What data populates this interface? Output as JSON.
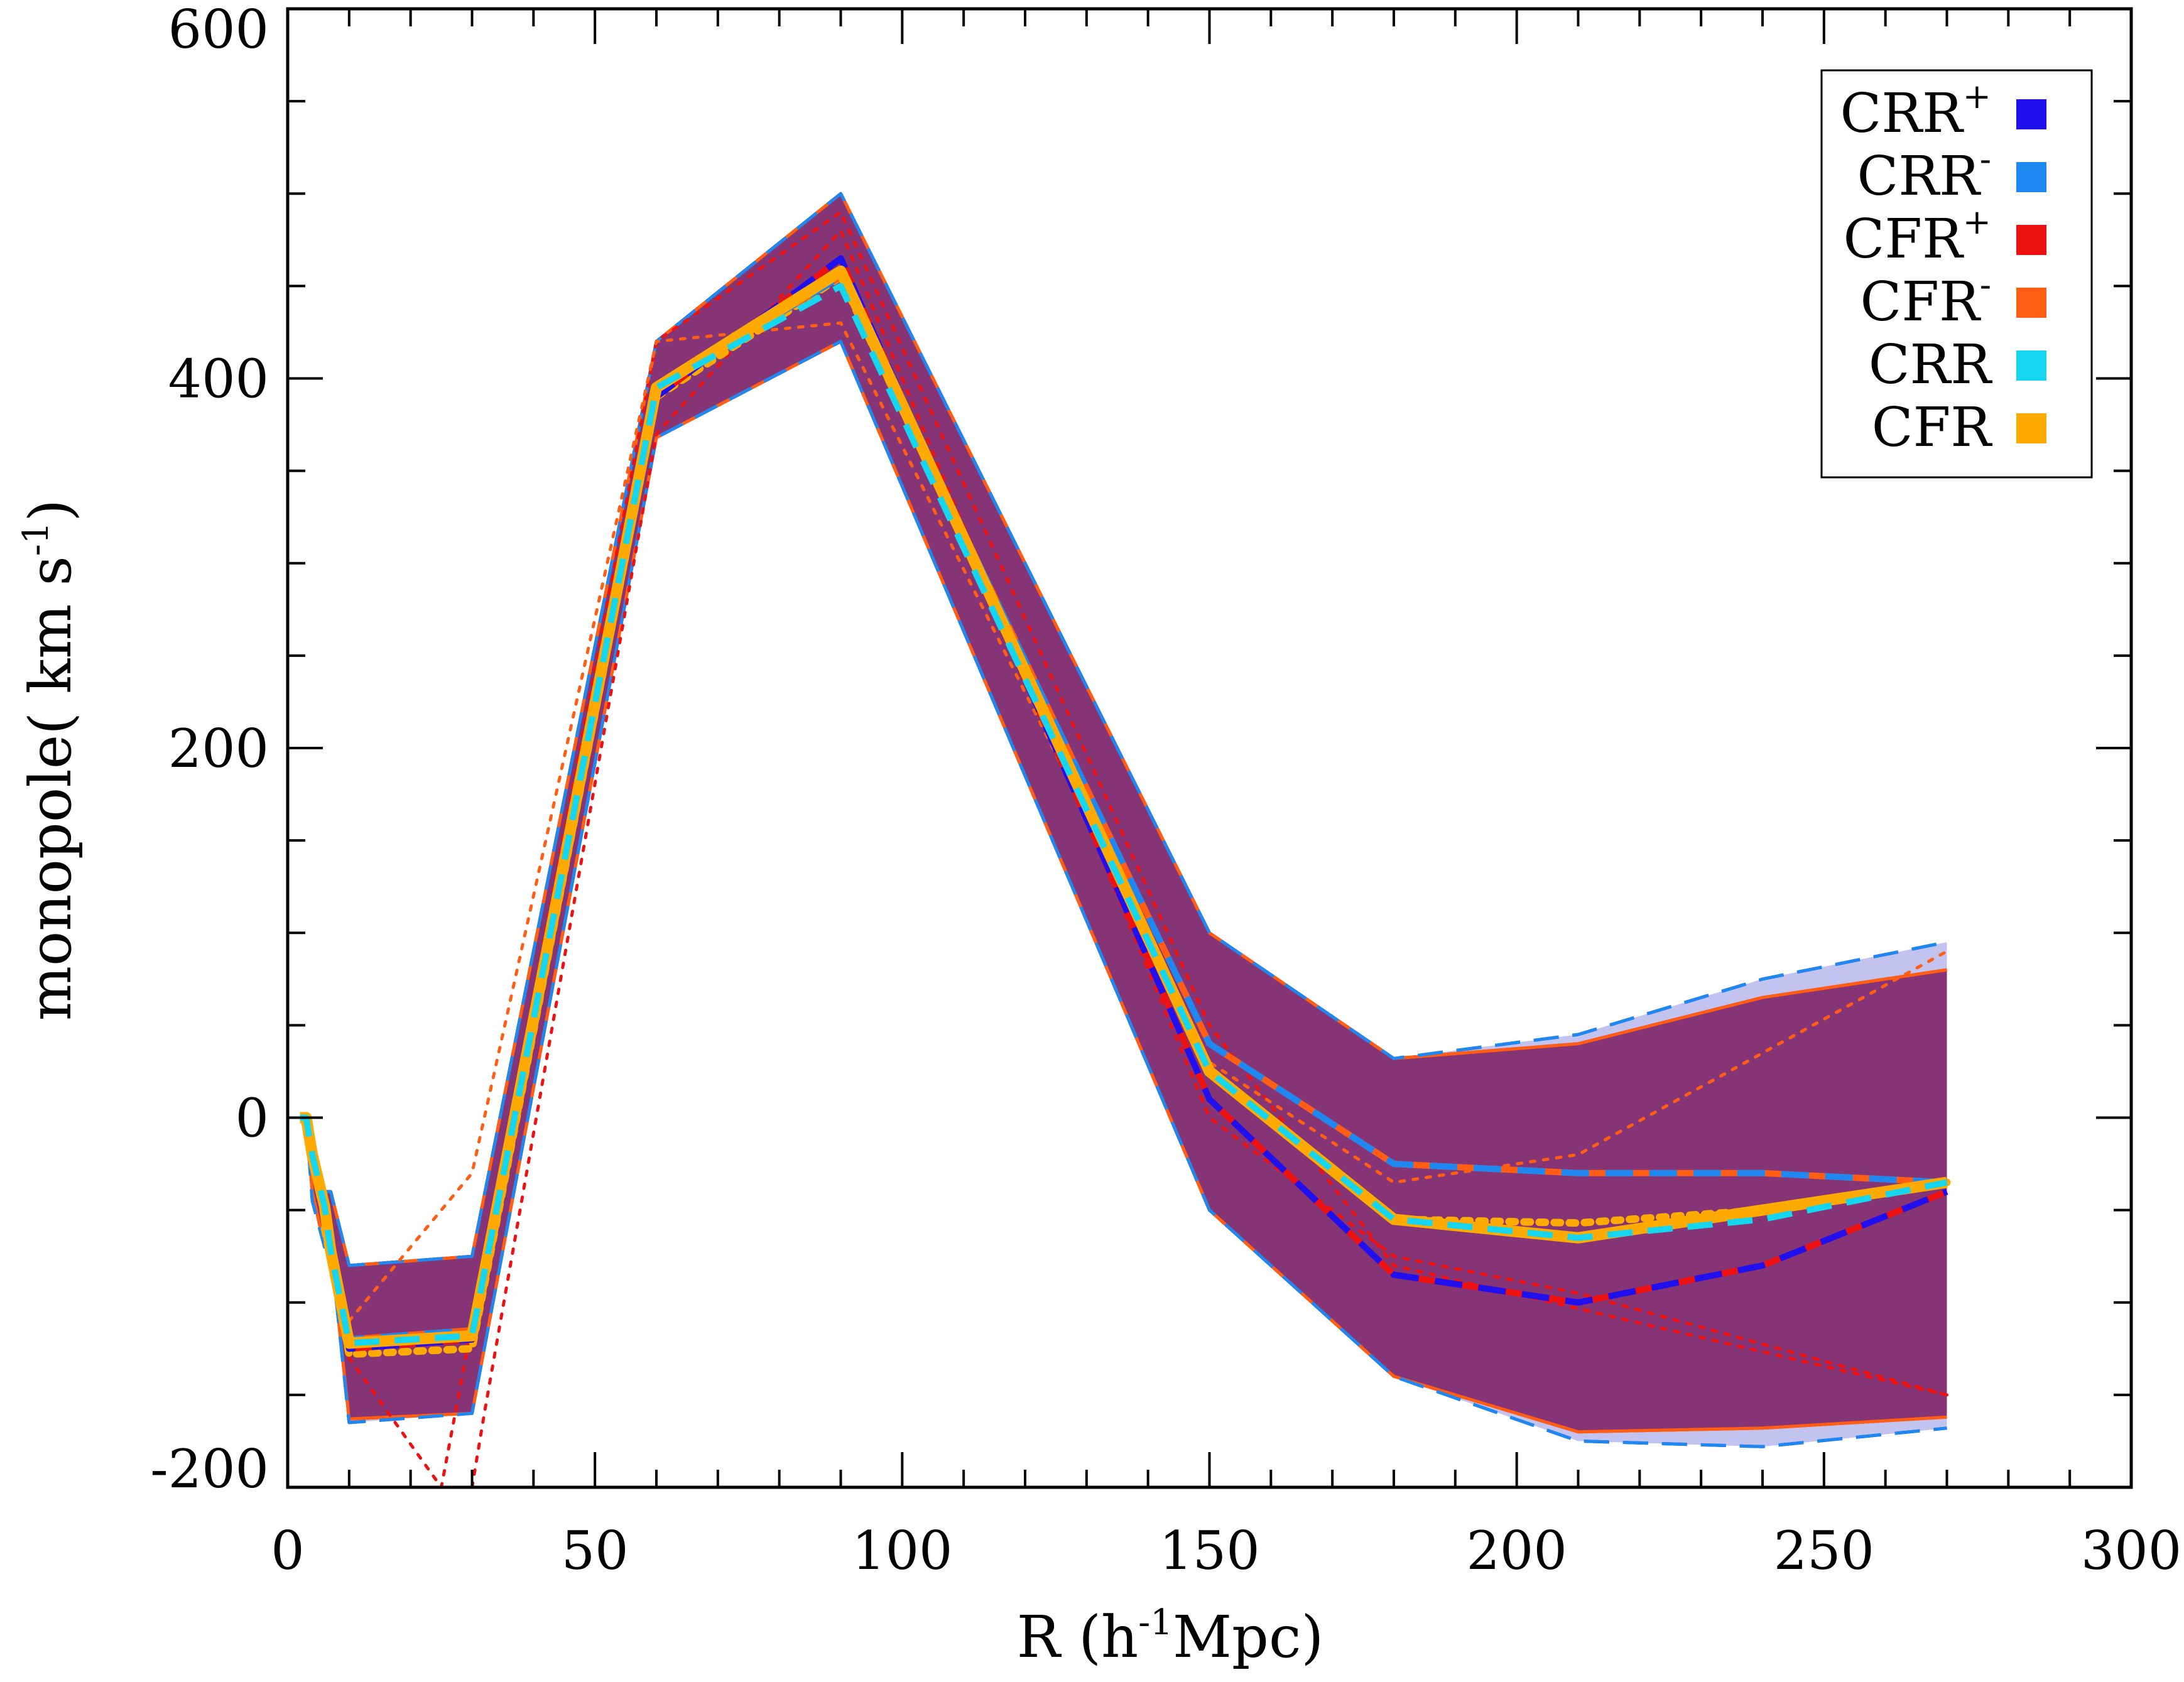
{
  "chart_data": {
    "type": "line",
    "xlabel": "R (h-1Mpc)",
    "xlabel_parts": {
      "pre": "R (h",
      "sup": "-1",
      "post": "Mpc)"
    },
    "ylabel": "monopole( km s-1)",
    "ylabel_parts": {
      "pre": "monopole( km s",
      "sup": "-1",
      "post": ")"
    },
    "xlim": [
      0,
      300
    ],
    "ylim": [
      -200,
      600
    ],
    "xticks": [
      "0",
      "50",
      "100",
      "150",
      "200",
      "250",
      "300"
    ],
    "yticks": [
      "-200",
      "0",
      "200",
      "400",
      "600"
    ],
    "grid": false,
    "legend_position": "top-right",
    "x": [
      2,
      3,
      4,
      6,
      7,
      10,
      30,
      60,
      90,
      150,
      180,
      210,
      240,
      270
    ],
    "bands": [
      {
        "color": "#c2c4ef",
        "upper": [
          0,
          0,
          -20,
          -40,
          -40,
          -80,
          -75,
          420,
          500,
          100,
          32,
          45,
          75,
          95
        ],
        "lower": [
          0,
          0,
          -45,
          -70,
          -70,
          -165,
          -160,
          368,
          420,
          -50,
          -140,
          -175,
          -178,
          -168
        ]
      },
      {
        "color": "#853576",
        "upper": [
          0,
          0,
          -20,
          -40,
          -40,
          -80,
          -75,
          420,
          500,
          100,
          32,
          40,
          65,
          80
        ],
        "lower": [
          0,
          0,
          -40,
          -70,
          -70,
          -163,
          -160,
          368,
          420,
          -50,
          -140,
          -170,
          -168,
          -162
        ]
      }
    ],
    "series": [
      {
        "name": "CRR+",
        "label_base": "CRR",
        "label_sup": "+",
        "color": "#2010ee",
        "values": [
          0,
          0,
          -20,
          -50,
          -75,
          -125,
          -120,
          390,
          465,
          10,
          -85,
          -100,
          -80,
          -40
        ]
      },
      {
        "name": "CRR-",
        "label_base": "CRR",
        "label_sup": "-",
        "color": "#1e88f0",
        "values": [
          0,
          0,
          -20,
          -45,
          -70,
          -120,
          -115,
          395,
          455,
          40,
          -25,
          -30,
          -30,
          -35
        ]
      },
      {
        "name": "CFR+",
        "label_base": "CFR",
        "label_sup": "+",
        "color": "#ee1111",
        "values": [
          0,
          0,
          -20,
          -50,
          -75,
          -125,
          -120,
          390,
          465,
          10,
          -85,
          -100,
          -80,
          -40
        ]
      },
      {
        "name": "CFR-",
        "label_base": "CFR",
        "label_sup": "-",
        "color": "#ff5e14",
        "values": [
          0,
          0,
          -20,
          -45,
          -70,
          -120,
          -115,
          395,
          455,
          40,
          -25,
          -30,
          -30,
          -35
        ]
      },
      {
        "name": "CRR",
        "label_base": "CRR",
        "label_sup": "",
        "color": "#15d6ee",
        "values": [
          0,
          0,
          -20,
          -48,
          -72,
          -122,
          -118,
          395,
          450,
          25,
          -55,
          -65,
          -55,
          -35
        ]
      },
      {
        "name": "CFR",
        "label_base": "CFR",
        "label_sup": "",
        "color": "#ffaa00",
        "values": [
          0,
          0,
          -20,
          -48,
          -72,
          -122,
          -118,
          395,
          458,
          25,
          -55,
          -65,
          -50,
          -35
        ]
      }
    ],
    "dotted_series": [
      {
        "color": "#ee1111",
        "x": [
          10,
          25,
          60,
          90,
          150,
          180,
          270
        ],
        "values": [
          -130,
          -200,
          420,
          490,
          50,
          -80,
          -150
        ]
      },
      {
        "color": "#ff5e14",
        "x": [
          10,
          30,
          60,
          90,
          150,
          180,
          210,
          270
        ],
        "values": [
          -110,
          -30,
          420,
          430,
          30,
          -35,
          -20,
          90
        ]
      },
      {
        "color": "#ee1111",
        "x": [
          30,
          32,
          60,
          90,
          150,
          180,
          210,
          270
        ],
        "values": [
          -200,
          -160,
          370,
          480,
          0,
          -75,
          -95,
          -150
        ]
      },
      {
        "color": "#ffaa00",
        "x": [
          6,
          10,
          30,
          60,
          90,
          150,
          180,
          210,
          240,
          270
        ],
        "values": [
          -60,
          -128,
          -125,
          390,
          455,
          25,
          -55,
          -57,
          -50,
          -35
        ]
      }
    ]
  }
}
